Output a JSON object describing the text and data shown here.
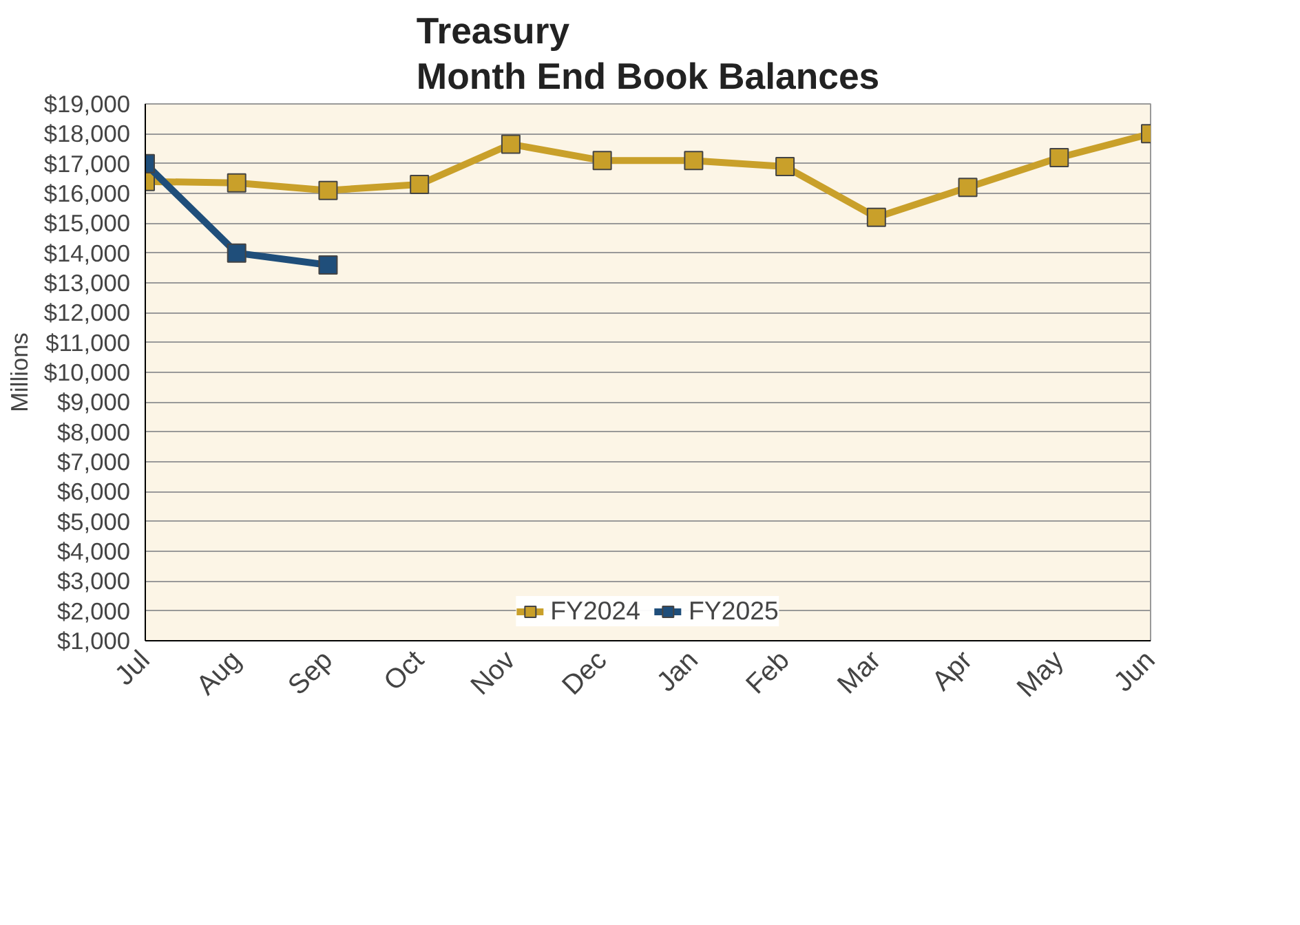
{
  "chart_data": {
    "type": "line",
    "title": "Treasury\nMonth End Book Balances",
    "ylabel": "Millions",
    "categories": [
      "Jul",
      "Aug",
      "Sep",
      "Oct",
      "Nov",
      "Dec",
      "Jan",
      "Feb",
      "Mar",
      "Apr",
      "May",
      "Jun"
    ],
    "series": [
      {
        "name": "FY2024",
        "color": "#c9a02a",
        "values": [
          16400,
          16350,
          16100,
          16300,
          17650,
          17100,
          17100,
          16900,
          15200,
          16200,
          17200,
          18000
        ]
      },
      {
        "name": "FY2025",
        "color": "#1f4e7a",
        "values": [
          17000,
          14000,
          13600,
          null,
          null,
          null,
          null,
          null,
          null,
          null,
          null,
          null
        ]
      }
    ],
    "ylim": [
      1000,
      19000
    ],
    "yticks": [
      {
        "value": 1000,
        "label": "$1,000"
      },
      {
        "value": 2000,
        "label": "$2,000"
      },
      {
        "value": 3000,
        "label": "$3,000"
      },
      {
        "value": 4000,
        "label": "$4,000"
      },
      {
        "value": 5000,
        "label": "$5,000"
      },
      {
        "value": 6000,
        "label": "$6,000"
      },
      {
        "value": 7000,
        "label": "$7,000"
      },
      {
        "value": 8000,
        "label": "$8,000"
      },
      {
        "value": 9000,
        "label": "$9,000"
      },
      {
        "value": 10000,
        "label": "$10,000"
      },
      {
        "value": 11000,
        "label": "$11,000"
      },
      {
        "value": 12000,
        "label": "$12,000"
      },
      {
        "value": 13000,
        "label": "$13,000"
      },
      {
        "value": 14000,
        "label": "$14,000"
      },
      {
        "value": 15000,
        "label": "$15,000"
      },
      {
        "value": 16000,
        "label": "$16,000"
      },
      {
        "value": 17000,
        "label": "$17,000"
      },
      {
        "value": 18000,
        "label": "$18,000"
      },
      {
        "value": 19000,
        "label": "$19,000"
      }
    ],
    "grid": "y",
    "legend": "bottom",
    "marker": "square",
    "line_style": "solid"
  }
}
